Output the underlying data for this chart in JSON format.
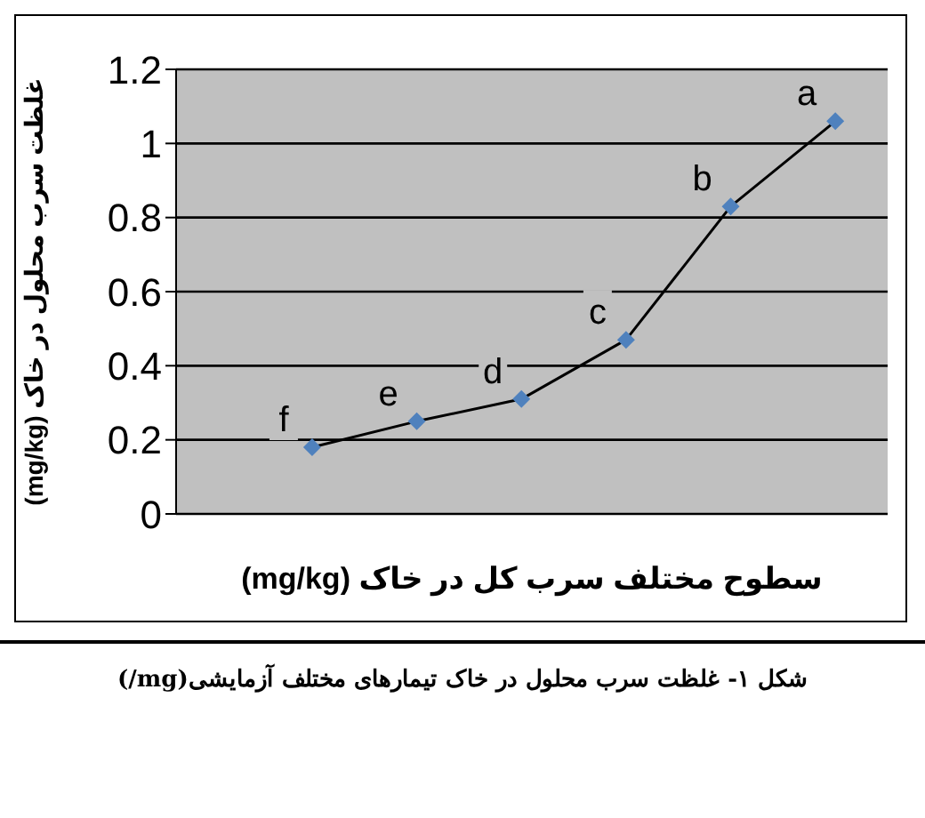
{
  "chart_data": {
    "type": "line",
    "xlabel": "سطوح مختلف سرب کل در خاک (mg/kg)",
    "ylabel": "غلظت سرب محلول در خاک (mg/kg)",
    "annotations": [
      "شکل ۱- غلظت سرب محلول در خاک تیمارهای مختلف  آزمایشی(mg/)"
    ],
    "categories": [
      null,
      null,
      null,
      null,
      null,
      null
    ],
    "series": [
      {
        "color": "#4f81bd",
        "values": [
          0.18,
          0.25,
          0.31,
          0.47,
          0.83,
          1.06
        ],
        "value_labels": [
          "f",
          "e",
          "d",
          "c",
          "b",
          "a"
        ]
      }
    ],
    "ylim": [
      0,
      1.2
    ],
    "yticks": [
      0,
      0.2,
      0.4,
      0.6,
      0.8,
      1,
      1.2
    ],
    "grid": "y",
    "marker": "diamond",
    "line_style": "solid"
  }
}
